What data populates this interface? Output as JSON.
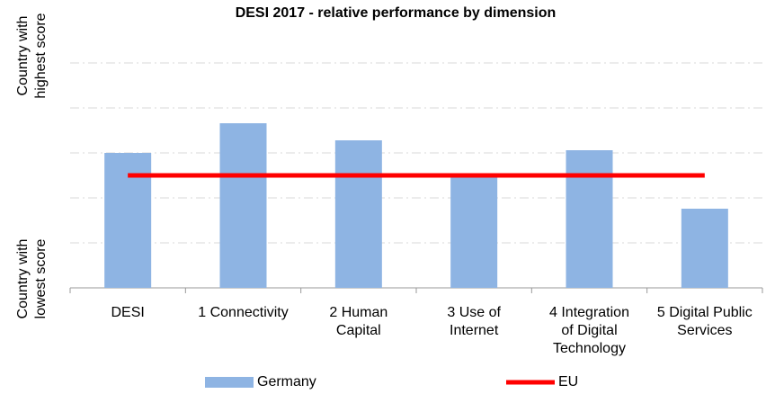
{
  "chart_data": {
    "type": "bar",
    "title": "DESI 2017 - relative performance by dimension",
    "y_label_top": "Country with\nhighest score",
    "y_label_bottom": "Country with\nlowest score",
    "categories": [
      "DESI",
      "1 Connectivity",
      "2 Human\nCapital",
      "3 Use of\nInternet",
      "4 Integration\nof Digital\nTechnology",
      "5 Digital Public\nServices"
    ],
    "series": [
      {
        "name": "Germany",
        "type": "bar",
        "color": "#8eb4e3",
        "values": [
          3.0,
          3.66,
          3.28,
          2.5,
          3.06,
          1.76
        ]
      },
      {
        "name": "EU",
        "type": "line",
        "color": "#ff0000",
        "values": [
          2.5,
          2.5,
          2.5,
          2.5,
          2.5,
          2.5
        ]
      }
    ],
    "ylim": [
      0,
      5
    ],
    "yticks": [
      0,
      1,
      2,
      3,
      4,
      5
    ],
    "grid": true,
    "legend": "bottom"
  }
}
